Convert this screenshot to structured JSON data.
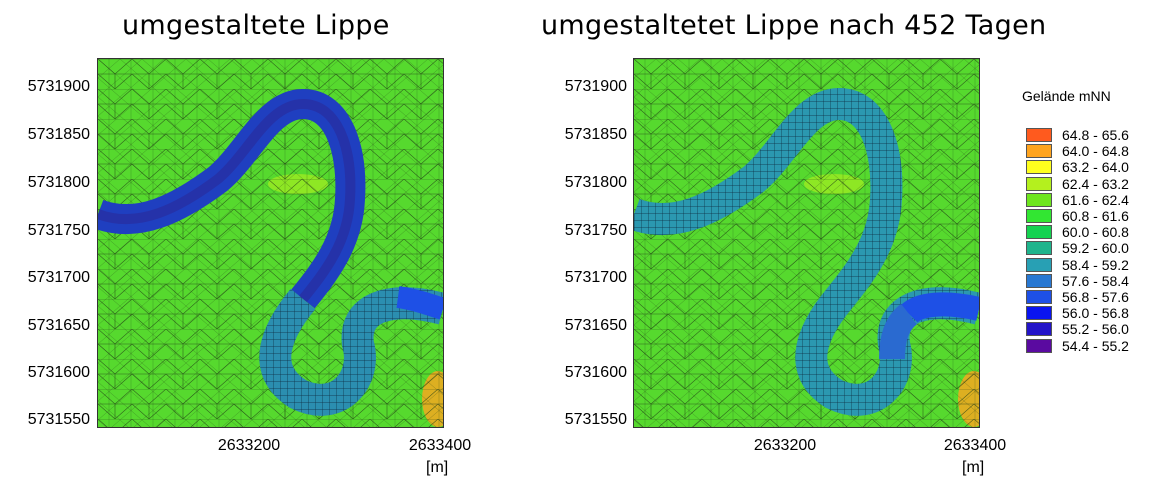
{
  "panels": [
    {
      "title": "umgestaltete Lippe",
      "y_ticks": [
        "5731900",
        "5731850",
        "5731800",
        "5731750",
        "5731700",
        "5731650",
        "5731600",
        "5731550"
      ],
      "x_ticks": [
        "2633200",
        "2633400"
      ],
      "x_unit": "[m]"
    },
    {
      "title": "umgestaltetet Lippe nach 452 Tagen",
      "y_ticks": [
        "5731900",
        "5731850",
        "5731800",
        "5731750",
        "5731700",
        "5731650",
        "5731600",
        "5731550"
      ],
      "x_ticks": [
        "2633200",
        "2633400"
      ],
      "x_unit": "[m]"
    }
  ],
  "legend": {
    "title": "Gelände mNN",
    "items": [
      {
        "label": "64.8 - 65.6",
        "color": "#ff5a1e"
      },
      {
        "label": "64.0 - 64.8",
        "color": "#ffa41e"
      },
      {
        "label": "63.2 - 64.0",
        "color": "#ffff1e"
      },
      {
        "label": "62.4 - 63.2",
        "color": "#b4f01e"
      },
      {
        "label": "61.6 - 62.4",
        "color": "#6ee61e"
      },
      {
        "label": "60.8 - 61.6",
        "color": "#32e632"
      },
      {
        "label": "60.0 - 60.8",
        "color": "#14d250"
      },
      {
        "label": "59.2 - 60.0",
        "color": "#1eb48c"
      },
      {
        "label": "58.4 - 59.2",
        "color": "#28a0b4"
      },
      {
        "label": "57.6 - 58.4",
        "color": "#2878d2"
      },
      {
        "label": "56.8 - 57.6",
        "color": "#1e50e6"
      },
      {
        "label": "56.0 - 56.8",
        "color": "#0a14f0"
      },
      {
        "label": "55.2 - 56.0",
        "color": "#2314c8"
      },
      {
        "label": "54.4 - 55.2",
        "color": "#5a0aa0"
      }
    ]
  }
}
